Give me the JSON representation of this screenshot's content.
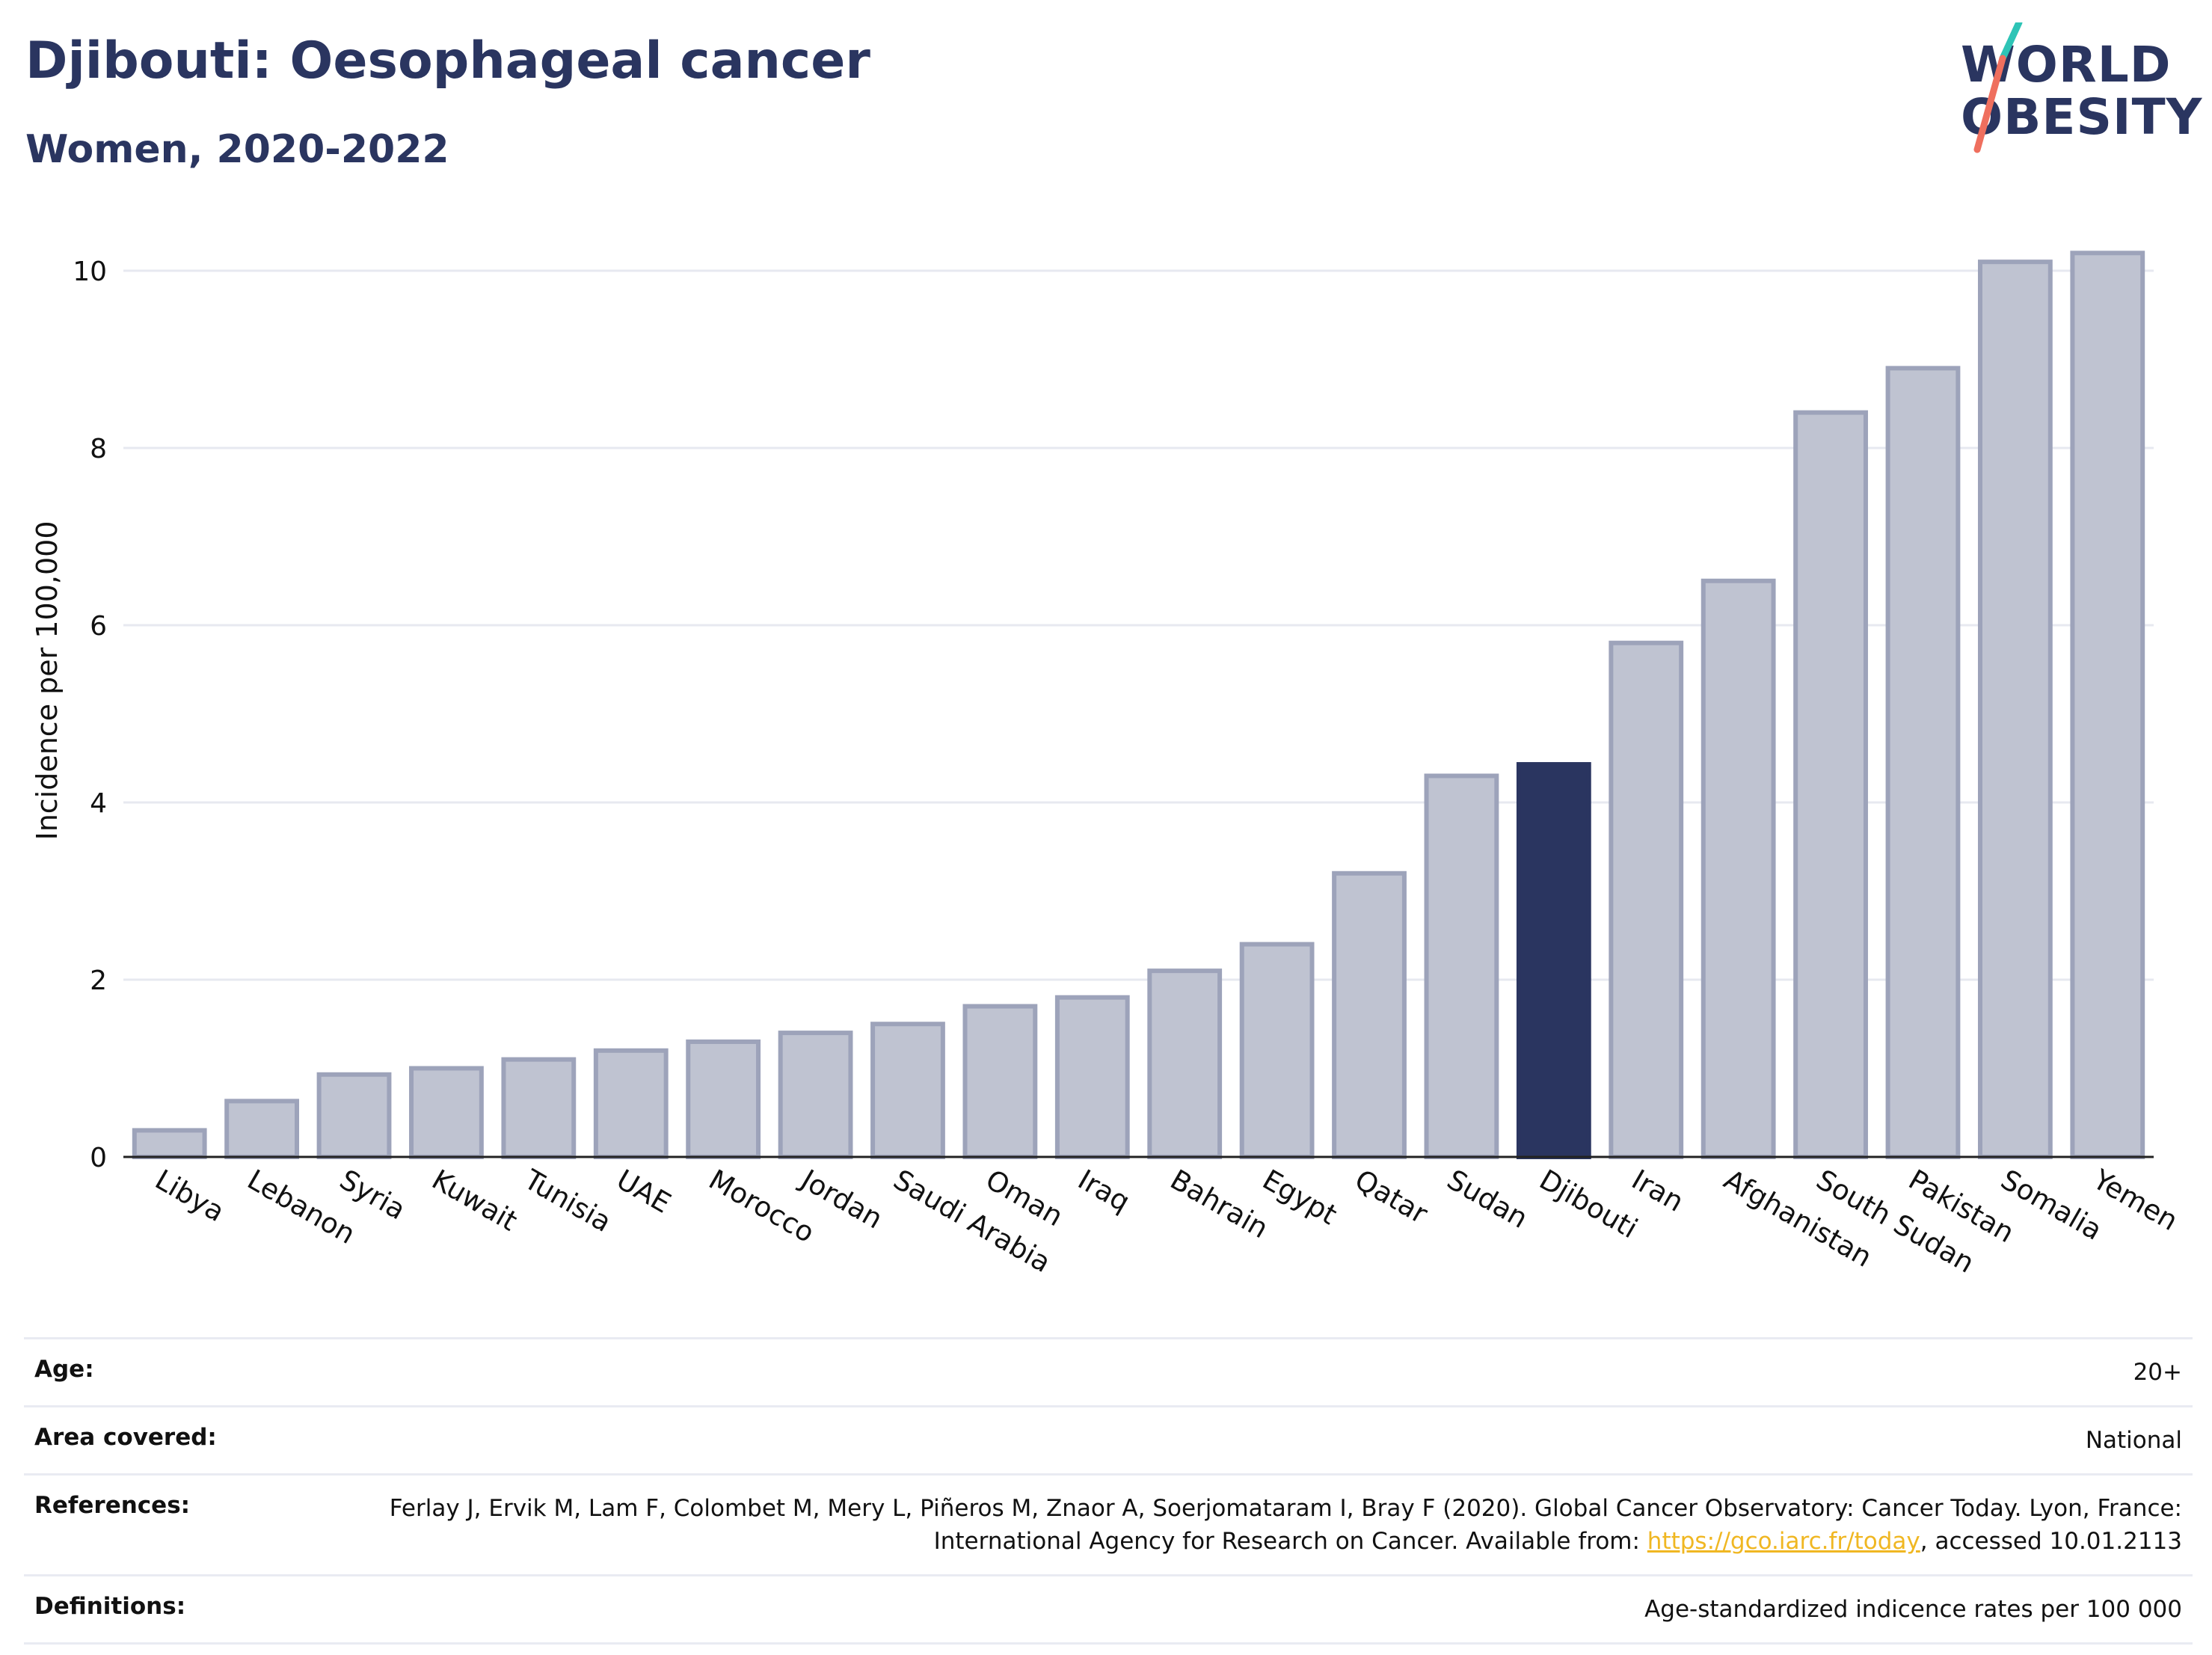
{
  "header": {
    "title": "Djibouti: Oesophageal cancer",
    "subtitle": "Women, 2020-2022"
  },
  "logo": {
    "line1": "WORLD",
    "line2": "OBESITY",
    "colors": {
      "text": "#2a3560",
      "slash_top": "#2ec4b6",
      "slash_bottom": "#ef6f5e"
    }
  },
  "chart_data": {
    "type": "bar",
    "title": "Djibouti: Oesophageal cancer",
    "subtitle": "Women, 2020-2022",
    "xlabel": "",
    "ylabel": "Incidence per 100,000",
    "ylim": [
      0,
      10.6
    ],
    "yticks": [
      0,
      2,
      4,
      6,
      8,
      10
    ],
    "grid": true,
    "highlight": "Djibouti",
    "colors": {
      "bar": "#bfc3d1",
      "bar_border": "#9da3ba",
      "highlight": "#2a3560",
      "grid": "#e7e9f0"
    },
    "categories": [
      "Libya",
      "Lebanon",
      "Syria",
      "Kuwait",
      "Tunisia",
      "UAE",
      "Morocco",
      "Jordan",
      "Saudi Arabia",
      "Oman",
      "Iraq",
      "Bahrain",
      "Egypt",
      "Qatar",
      "Sudan",
      "Djibouti",
      "Iran",
      "Afghanistan",
      "South Sudan",
      "Pakistan",
      "Somalia",
      "Yemen"
    ],
    "values": [
      0.3,
      0.63,
      0.93,
      1.0,
      1.1,
      1.2,
      1.3,
      1.4,
      1.5,
      1.7,
      1.8,
      2.1,
      2.4,
      3.2,
      4.3,
      4.43,
      5.8,
      6.5,
      8.4,
      8.9,
      10.1,
      10.2
    ]
  },
  "meta": {
    "rows": [
      {
        "label": "Age:",
        "value": "20+"
      },
      {
        "label": "Area covered:",
        "value": "National"
      },
      {
        "label": "References:",
        "value_pre": "Ferlay J, Ervik M, Lam F, Colombet M, Mery L, Piñeros M, Znaor A, Soerjomataram I, Bray F (2020). Global Cancer Observatory: Cancer Today. Lyon, France: International Agency for Research on Cancer. Available from: ",
        "link": "https://gco.iarc.fr/today",
        "value_post": ", accessed 10.01.2113"
      },
      {
        "label": "Definitions:",
        "value": "Age-standardized indicence rates per 100 000"
      }
    ]
  }
}
